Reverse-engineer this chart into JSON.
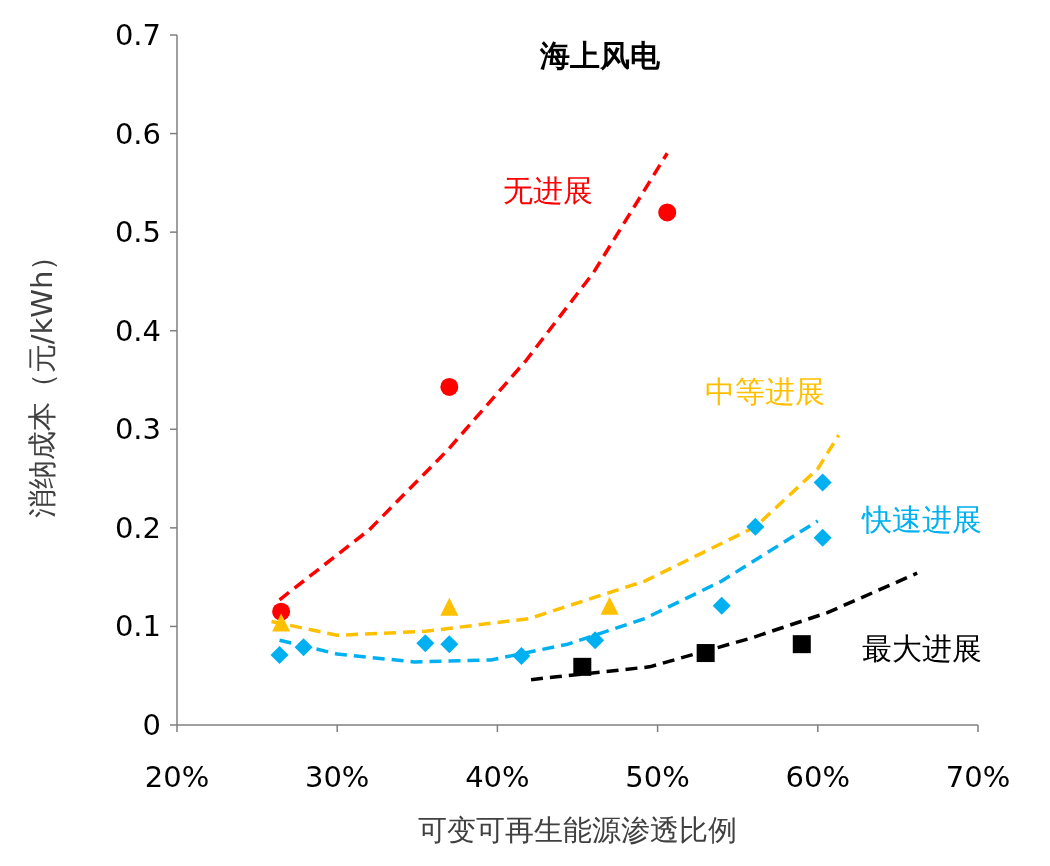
{
  "chart_data": {
    "type": "scatter",
    "title": "海上风电",
    "xlabel": "可变可再生能源渗透比例",
    "ylabel": "消纳成本（元/kWh）",
    "xlim": [
      20,
      70
    ],
    "ylim": [
      0,
      0.7
    ],
    "xticks": [
      {
        "value": 20,
        "label": "20%"
      },
      {
        "value": 30,
        "label": "30%"
      },
      {
        "value": 40,
        "label": "40%"
      },
      {
        "value": 50,
        "label": "50%"
      },
      {
        "value": 60,
        "label": "60%"
      },
      {
        "value": 70,
        "label": "70%"
      }
    ],
    "yticks": [
      0,
      0.1,
      0.2,
      0.3,
      0.4,
      0.5,
      0.6,
      0.7
    ],
    "grid": false,
    "legend": false,
    "series": [
      {
        "name": "无进展",
        "marker": "circle",
        "color": "#ff0000",
        "x": [
          26.5,
          37.0,
          50.6
        ],
        "values": [
          0.115,
          0.343,
          0.52
        ]
      },
      {
        "name": "中等进展",
        "marker": "triangle",
        "color": "#ffc000",
        "x": [
          26.5,
          37.0,
          47.0
        ],
        "values": [
          0.103,
          0.119,
          0.12
        ]
      },
      {
        "name": "快速进展",
        "marker": "diamond",
        "color": "#00b0f0",
        "x": [
          26.4,
          27.9,
          35.5,
          37.0,
          41.5,
          46.1,
          54.0,
          56.1,
          60.3,
          60.3
        ],
        "values": [
          0.071,
          0.079,
          0.083,
          0.082,
          0.07,
          0.086,
          0.121,
          0.201,
          0.246,
          0.19
        ]
      },
      {
        "name": "最大进展",
        "marker": "square",
        "color": "#000000",
        "x": [
          45.3,
          53.0,
          59.0
        ],
        "values": [
          0.059,
          0.073,
          0.082
        ]
      },
      {
        "type": "line",
        "line_style": "dashed",
        "color": "#ff0000",
        "x": [
          26.4,
          32.0,
          36.9,
          41.8,
          46.0,
          50.6
        ],
        "values": [
          0.127,
          0.198,
          0.279,
          0.37,
          0.459,
          0.58
        ]
      },
      {
        "type": "line",
        "line_style": "dashed",
        "color": "#ffc000",
        "x": [
          25.9,
          30.0,
          35.5,
          42.0,
          49.2,
          56.1,
          60.0,
          61.3
        ],
        "values": [
          0.105,
          0.091,
          0.095,
          0.108,
          0.146,
          0.201,
          0.26,
          0.294
        ]
      },
      {
        "type": "line",
        "line_style": "dashed",
        "color": "#00b0f0",
        "x": [
          26.4,
          30.0,
          34.8,
          39.6,
          44.4,
          49.2,
          54.0,
          60.0
        ],
        "values": [
          0.086,
          0.072,
          0.064,
          0.066,
          0.082,
          0.108,
          0.146,
          0.207
        ]
      },
      {
        "type": "line",
        "line_style": "dashed",
        "color": "#000000",
        "x": [
          42.1,
          43.7,
          49.5,
          55.8,
          60.6,
          66.2
        ],
        "values": [
          0.046,
          0.049,
          0.059,
          0.088,
          0.114,
          0.154
        ]
      }
    ]
  }
}
